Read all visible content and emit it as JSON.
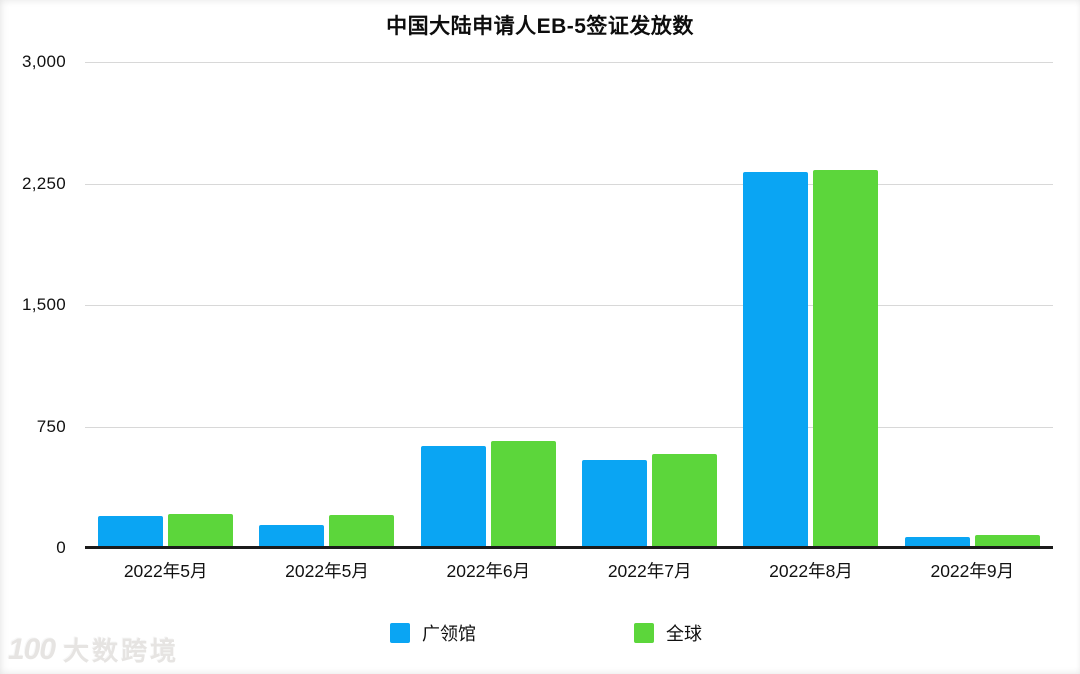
{
  "watermark": {
    "logo": "100",
    "text": "大数跨境"
  },
  "colors": {
    "series_blue": "#0AA5F3",
    "series_green": "#5CD63B",
    "gridline": "#D8D8D8",
    "axis_line": "#1B1B1B",
    "text": "#111111",
    "watermark": "#E6E4E2"
  },
  "chart_data": {
    "type": "bar",
    "title": "中国大陆申请人EB-5签证发放数",
    "categories": [
      "2022年5月",
      "2022年5月",
      "2022年6月",
      "2022年7月",
      "2022年8月",
      "2022年9月"
    ],
    "series": [
      {
        "name": "广领馆",
        "color": "#0AA5F3",
        "values": [
          190,
          135,
          625,
          540,
          2320,
          65
        ]
      },
      {
        "name": "全球",
        "color": "#5CD63B",
        "values": [
          205,
          195,
          655,
          575,
          2330,
          75
        ]
      }
    ],
    "ylabel": "",
    "xlabel": "",
    "ylim": [
      0,
      3000
    ],
    "yticks": [
      0,
      750,
      1500,
      2250,
      3000
    ],
    "ytick_labels": [
      "0",
      "750",
      "1,500",
      "2,250",
      "3,000"
    ],
    "grid": true,
    "legend_position": "bottom"
  }
}
